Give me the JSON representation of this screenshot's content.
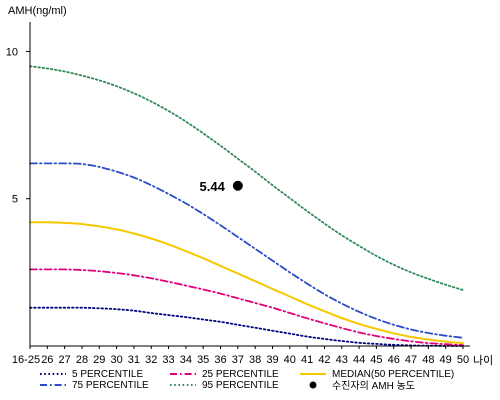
{
  "chart_data": {
    "type": "line",
    "ylabel": "AMH(ng/ml)",
    "xlabel": "나이",
    "ylim": [
      0,
      11
    ],
    "yticks": [
      5,
      10
    ],
    "categories": [
      "16-25",
      "26",
      "27",
      "28",
      "29",
      "30",
      "31",
      "32",
      "33",
      "34",
      "35",
      "36",
      "37",
      "38",
      "39",
      "40",
      "41",
      "42",
      "43",
      "44",
      "45",
      "46",
      "47",
      "48",
      "49",
      "50"
    ],
    "series": [
      {
        "name": "5 PERCENTILE",
        "color": "#000080",
        "dash": "dot",
        "values": [
          1.3,
          1.3,
          1.3,
          1.3,
          1.28,
          1.25,
          1.2,
          1.12,
          1.05,
          0.98,
          0.9,
          0.82,
          0.72,
          0.62,
          0.52,
          0.42,
          0.32,
          0.24,
          0.17,
          0.11,
          0.07,
          0.04,
          0.02,
          0.01,
          0.005,
          0.0
        ]
      },
      {
        "name": "25 PERCENTILE",
        "color": "#e0007a",
        "dash": "dashdot",
        "values": [
          2.6,
          2.6,
          2.6,
          2.58,
          2.54,
          2.48,
          2.4,
          2.3,
          2.18,
          2.05,
          1.92,
          1.78,
          1.62,
          1.46,
          1.3,
          1.12,
          0.94,
          0.77,
          0.61,
          0.46,
          0.34,
          0.24,
          0.16,
          0.1,
          0.06,
          0.03
        ]
      },
      {
        "name": "MEDIAN(50 PERCENTILE)",
        "color": "#f5c800",
        "dash": "solid",
        "values": [
          4.2,
          4.2,
          4.18,
          4.14,
          4.06,
          3.96,
          3.82,
          3.65,
          3.45,
          3.22,
          2.98,
          2.72,
          2.46,
          2.2,
          1.94,
          1.68,
          1.42,
          1.18,
          0.95,
          0.75,
          0.58,
          0.43,
          0.31,
          0.22,
          0.15,
          0.1
        ]
      },
      {
        "name": "75 PERCENTILE",
        "color": "#2b4cc8",
        "dash": "dashdot",
        "values": [
          6.2,
          6.2,
          6.2,
          6.18,
          6.08,
          5.92,
          5.72,
          5.46,
          5.16,
          4.84,
          4.48,
          4.1,
          3.7,
          3.3,
          2.9,
          2.5,
          2.12,
          1.76,
          1.44,
          1.16,
          0.92,
          0.72,
          0.56,
          0.44,
          0.35,
          0.28
        ]
      },
      {
        "name": "95 PERCENTILE",
        "color": "#2e8b57",
        "dash": "dot",
        "values": [
          9.5,
          9.42,
          9.32,
          9.18,
          9.02,
          8.82,
          8.58,
          8.3,
          7.98,
          7.62,
          7.22,
          6.8,
          6.36,
          5.92,
          5.46,
          5.02,
          4.58,
          4.16,
          3.76,
          3.4,
          3.06,
          2.76,
          2.5,
          2.28,
          2.08,
          1.9
        ]
      }
    ],
    "highlight_point": {
      "x": "37",
      "y": 5.44,
      "label": "5.44",
      "legend_name": "수진자의 AMH 농도",
      "color": "#000000"
    },
    "legend_position": "bottom",
    "grid": false
  }
}
